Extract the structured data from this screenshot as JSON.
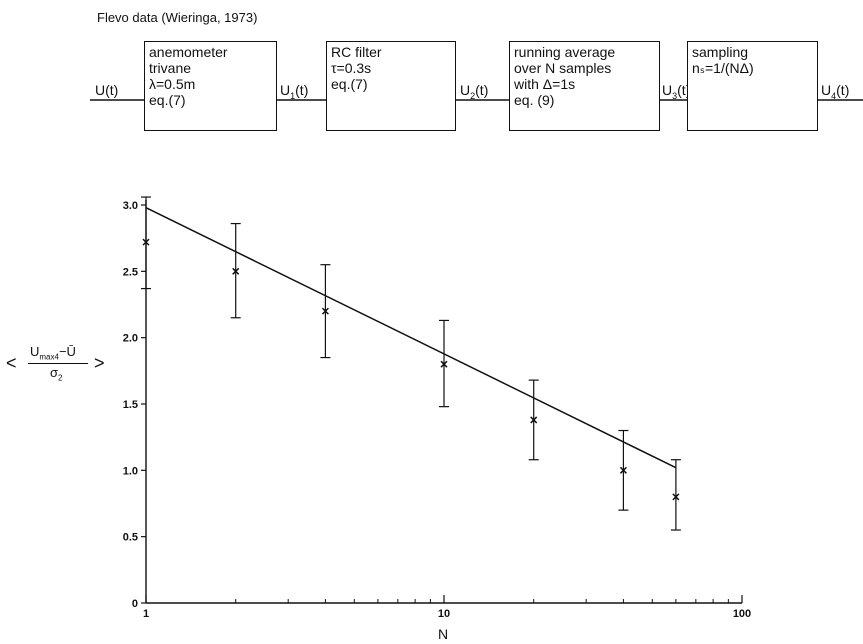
{
  "header": {
    "title": "Flevo data (Wieringa, 1973)"
  },
  "diagram": {
    "signals": {
      "u0": "U(t)",
      "u1": {
        "base": "U",
        "sub": "1",
        "tail": "(t)"
      },
      "u2": {
        "base": "U",
        "sub": "2",
        "tail": "(t)"
      },
      "u3": {
        "base": "U",
        "sub": "3",
        "tail": "(t)"
      },
      "u4": {
        "base": "U",
        "sub": "4",
        "tail": "(t)"
      }
    },
    "boxes": [
      {
        "lines": [
          "anemometer",
          "trivane",
          "λ=0.5m",
          "eq.(7)"
        ]
      },
      {
        "lines": [
          "RC filter",
          "τ=0.3s",
          "eq.(7)"
        ]
      },
      {
        "lines": [
          "running average",
          "over N samples",
          "with Δ=1s",
          "eq. (9)"
        ]
      },
      {
        "lines": [
          "sampling",
          "nₛ=1/(NΔ)"
        ]
      }
    ]
  },
  "chart_data": {
    "type": "scatter",
    "x_scale": "log",
    "xlim": [
      1,
      100
    ],
    "ylim": [
      0,
      3.0
    ],
    "xlabel": "N",
    "ylabel": {
      "left_angle": "<",
      "right_angle": ">",
      "numerator_base": "U",
      "numerator_sub": "max4",
      "numerator_tail": "−Ū",
      "denominator_base": "σ",
      "denominator_sub": "2"
    },
    "x_ticks": [
      1,
      10,
      100
    ],
    "x_tick_labels": [
      "1",
      "10",
      "100"
    ],
    "y_ticks": [
      0,
      0.5,
      1.0,
      1.5,
      2.0,
      2.5,
      3.0
    ],
    "y_tick_labels": [
      "0",
      "0.5",
      "1.0",
      "1.5",
      "2.0",
      "2.5",
      "3.0"
    ],
    "points": [
      {
        "x": 1,
        "y": 2.72,
        "err_low": 2.37,
        "err_high": 3.06
      },
      {
        "x": 2,
        "y": 2.5,
        "err_low": 2.15,
        "err_high": 2.86
      },
      {
        "x": 4,
        "y": 2.2,
        "err_low": 1.85,
        "err_high": 2.55
      },
      {
        "x": 10,
        "y": 1.8,
        "err_low": 1.48,
        "err_high": 2.13
      },
      {
        "x": 20,
        "y": 1.38,
        "err_low": 1.08,
        "err_high": 1.68
      },
      {
        "x": 40,
        "y": 1.0,
        "err_low": 0.7,
        "err_high": 1.3
      },
      {
        "x": 60,
        "y": 0.8,
        "err_low": 0.55,
        "err_high": 1.08
      }
    ],
    "fit_line": {
      "x": [
        1,
        60
      ],
      "y": [
        2.98,
        1.02
      ]
    }
  }
}
